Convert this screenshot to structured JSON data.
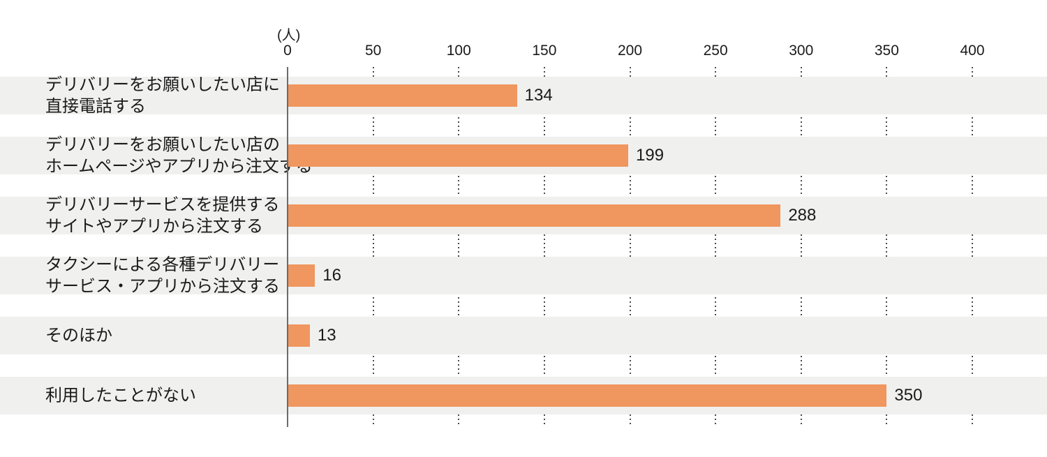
{
  "chart_data": {
    "type": "bar",
    "orientation": "horizontal",
    "title": "",
    "unit_label": "(人)",
    "xlabel": "",
    "ylabel": "",
    "x_ticks": [
      0,
      50,
      100,
      150,
      200,
      250,
      300,
      350,
      400
    ],
    "xlim": [
      0,
      400
    ],
    "grid": "dotted-vertical-between-rows",
    "legend": "none",
    "categories": [
      "デリバリーをお願いしたい店に\n直接電話する",
      "デリバリーをお願いしたい店の\nホームページやアプリから注文する",
      "デリバリーサービスを提供する\nサイトやアプリから注文する",
      "タクシーによる各種デリバリー\nサービス・アプリから注文する",
      "そのほか",
      "利用したことがない"
    ],
    "values": [
      134,
      199,
      288,
      16,
      13,
      350
    ],
    "colors": {
      "bar": "#f0965f",
      "row_band": "#f0f0ef",
      "axis_line": "#6b6b6b",
      "grid_dot": "#4a4a4a",
      "text": "#1a1a1a"
    }
  }
}
